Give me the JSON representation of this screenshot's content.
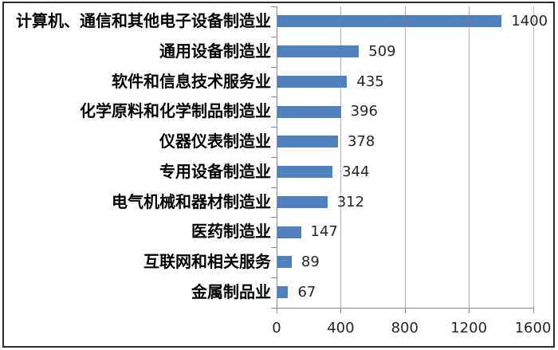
{
  "chart_data": {
    "type": "bar",
    "orientation": "horizontal",
    "title": "",
    "xlabel": "",
    "ylabel": "",
    "categories": [
      "计算机、通信和其他电子设备制造业",
      "通用设备制造业",
      "软件和信息技术服务业",
      "化学原料和化学制品制造业",
      "仪器仪表制造业",
      "专用设备制造业",
      "电气机械和器材制造业",
      "医药制造业",
      "互联网和相关服务",
      "金属制品业"
    ],
    "values": [
      1400,
      509,
      435,
      396,
      378,
      344,
      312,
      147,
      89,
      67
    ],
    "data_labels": [
      "1400",
      "509",
      "435",
      "396",
      "378",
      "344",
      "312",
      "147",
      "89",
      "67"
    ],
    "xlim": [
      0,
      1600
    ],
    "x_ticks": [
      0,
      400,
      800,
      1200,
      1600
    ],
    "x_tick_labels": [
      "0",
      "400",
      "800",
      "1200",
      "1600"
    ],
    "grid": true,
    "legend": "none",
    "colors": {
      "bar": "#4f81bd",
      "gridline_rgba": "128,128,128,0.55",
      "axis": "#8a8a8a",
      "text": "#262626",
      "category_text": "#000000",
      "border": "#2b2b2b",
      "background": "#ffffff"
    }
  }
}
